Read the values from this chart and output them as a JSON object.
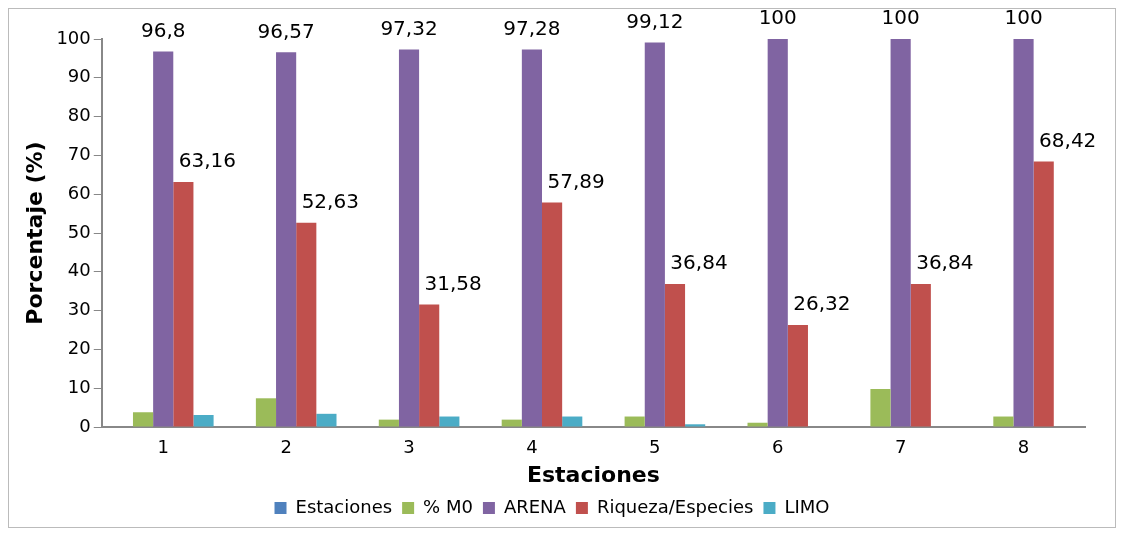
{
  "chart_data": {
    "type": "bar",
    "xlabel": "Estaciones",
    "ylabel": "Porcentaje (%)",
    "categories": [
      "1",
      "2",
      "3",
      "4",
      "5",
      "6",
      "7",
      "8"
    ],
    "series": [
      {
        "name": "Estaciones",
        "color": "#4f81bd",
        "values": [
          null,
          null,
          null,
          null,
          null,
          null,
          null,
          null
        ]
      },
      {
        "name": "% M0",
        "color": "#9bbb59",
        "values": [
          3.8,
          7.4,
          1.9,
          1.9,
          2.7,
          1.1,
          9.8,
          2.7
        ]
      },
      {
        "name": "ARENA",
        "color": "#8064a2",
        "values": [
          96.8,
          96.57,
          97.32,
          97.28,
          99.12,
          100,
          100,
          100
        ],
        "value_labels": [
          "96,8",
          "96,57",
          "97,32",
          "97,28",
          "99,12",
          "100",
          "100",
          "100"
        ]
      },
      {
        "name": "Riqueza/Especies",
        "color": "#c0504d",
        "values": [
          63.16,
          52.63,
          31.58,
          57.89,
          36.84,
          26.32,
          36.84,
          68.42
        ],
        "value_labels": [
          "63,16",
          "52,63",
          "31,58",
          "57,89",
          "36,84",
          "26,32",
          "36,84",
          "68,42"
        ]
      },
      {
        "name": "LIMO",
        "color": "#4bacc6",
        "values": [
          3.1,
          3.4,
          2.7,
          2.7,
          0.7,
          null,
          null,
          null
        ]
      }
    ],
    "ylim": [
      0,
      100
    ],
    "yticks": [
      0,
      10,
      20,
      30,
      40,
      50,
      60,
      70,
      80,
      90,
      100
    ],
    "grid": false,
    "legend": "bottom"
  }
}
